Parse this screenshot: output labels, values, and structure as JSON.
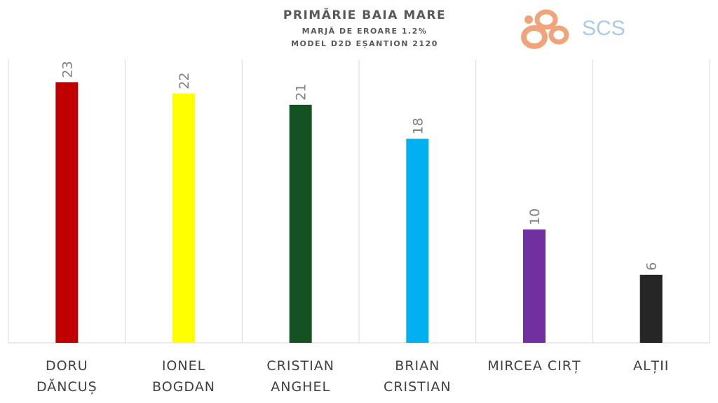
{
  "chart_data": {
    "type": "bar",
    "title": "PRIMĂRIE BAIA MARE",
    "subtitle": [
      "MARJĂ DE EROARE 1.2%",
      "MODEL D2D EȘANTION 2120"
    ],
    "categories": [
      "DORU\nDĂNCUȘ",
      "IONEL\nBOGDAN",
      "CRISTIAN\nANGHEL",
      "BRIAN\nCRISTIAN",
      "MIRCEA CIRȚ",
      "ALȚII"
    ],
    "values": [
      23,
      22,
      21,
      18,
      10,
      6
    ],
    "colors": [
      "#c00000",
      "#ffff00",
      "#145222",
      "#00b0f0",
      "#7030a0",
      "#262626"
    ],
    "data_labels": [
      "23",
      "22",
      "21",
      "18",
      "10",
      "6"
    ],
    "xlabel": "",
    "ylabel": "",
    "ylim": [
      0,
      25
    ],
    "grid": "vertical category separators",
    "legend": "none"
  },
  "logo": {
    "text": "SCS",
    "accent": "#f0a47c",
    "text_color": "#a9cbe3"
  }
}
